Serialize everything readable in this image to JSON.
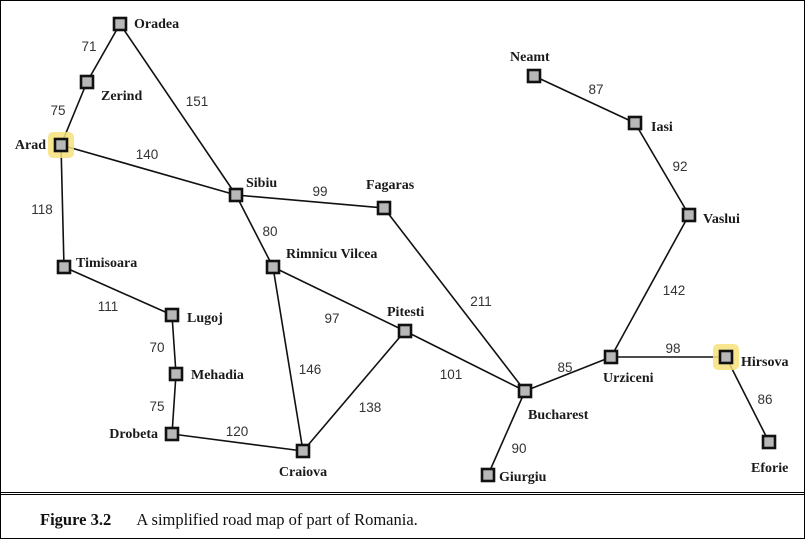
{
  "cities": [
    {
      "id": "oradea",
      "name": "Oradea",
      "highlight": false
    },
    {
      "id": "zerind",
      "name": "Zerind",
      "highlight": false
    },
    {
      "id": "arad",
      "name": "Arad",
      "highlight": true
    },
    {
      "id": "timisoara",
      "name": "Timisoara",
      "highlight": false
    },
    {
      "id": "lugoj",
      "name": "Lugoj",
      "highlight": false
    },
    {
      "id": "mehadia",
      "name": "Mehadia",
      "highlight": false
    },
    {
      "id": "drobeta",
      "name": "Drobeta",
      "highlight": false
    },
    {
      "id": "craiova",
      "name": "Craiova",
      "highlight": false
    },
    {
      "id": "sibiu",
      "name": "Sibiu",
      "highlight": false
    },
    {
      "id": "rimnicu",
      "name": "Rimnicu Vilcea",
      "highlight": false
    },
    {
      "id": "fagaras",
      "name": "Fagaras",
      "highlight": false
    },
    {
      "id": "pitesti",
      "name": "Pitesti",
      "highlight": false
    },
    {
      "id": "bucharest",
      "name": "Bucharest",
      "highlight": false
    },
    {
      "id": "giurgiu",
      "name": "Giurgiu",
      "highlight": false
    },
    {
      "id": "urziceni",
      "name": "Urziceni",
      "highlight": false
    },
    {
      "id": "hirsova",
      "name": "Hirsova",
      "highlight": true
    },
    {
      "id": "eforie",
      "name": "Eforie",
      "highlight": false
    },
    {
      "id": "vaslui",
      "name": "Vaslui",
      "highlight": false
    },
    {
      "id": "iasi",
      "name": "Iasi",
      "highlight": false
    },
    {
      "id": "neamt",
      "name": "Neamt",
      "highlight": false
    }
  ],
  "roads": [
    {
      "from": "oradea",
      "to": "zerind",
      "distance": "71"
    },
    {
      "from": "zerind",
      "to": "arad",
      "distance": "75"
    },
    {
      "from": "oradea",
      "to": "sibiu",
      "distance": "151"
    },
    {
      "from": "arad",
      "to": "sibiu",
      "distance": "140"
    },
    {
      "from": "arad",
      "to": "timisoara",
      "distance": "118"
    },
    {
      "from": "timisoara",
      "to": "lugoj",
      "distance": "111"
    },
    {
      "from": "lugoj",
      "to": "mehadia",
      "distance": "70"
    },
    {
      "from": "mehadia",
      "to": "drobeta",
      "distance": "75"
    },
    {
      "from": "drobeta",
      "to": "craiova",
      "distance": "120"
    },
    {
      "from": "sibiu",
      "to": "fagaras",
      "distance": "99"
    },
    {
      "from": "sibiu",
      "to": "rimnicu",
      "distance": "80"
    },
    {
      "from": "rimnicu",
      "to": "pitesti",
      "distance": "97"
    },
    {
      "from": "rimnicu",
      "to": "craiova",
      "distance": "146"
    },
    {
      "from": "craiova",
      "to": "pitesti",
      "distance": "138"
    },
    {
      "from": "pitesti",
      "to": "bucharest",
      "distance": "101"
    },
    {
      "from": "fagaras",
      "to": "bucharest",
      "distance": "211"
    },
    {
      "from": "bucharest",
      "to": "giurgiu",
      "distance": "90"
    },
    {
      "from": "bucharest",
      "to": "urziceni",
      "distance": "85"
    },
    {
      "from": "urziceni",
      "to": "hirsova",
      "distance": "98"
    },
    {
      "from": "hirsova",
      "to": "eforie",
      "distance": "86"
    },
    {
      "from": "urziceni",
      "to": "vaslui",
      "distance": "142"
    },
    {
      "from": "vaslui",
      "to": "iasi",
      "distance": "92"
    },
    {
      "from": "iasi",
      "to": "neamt",
      "distance": "87"
    }
  ],
  "caption": {
    "figure_label": "Figure 3.2",
    "text": "A simplified road map of part of Romania."
  },
  "colors": {
    "highlight": "#f6e27a",
    "node_fill": "#b8b8b8"
  }
}
